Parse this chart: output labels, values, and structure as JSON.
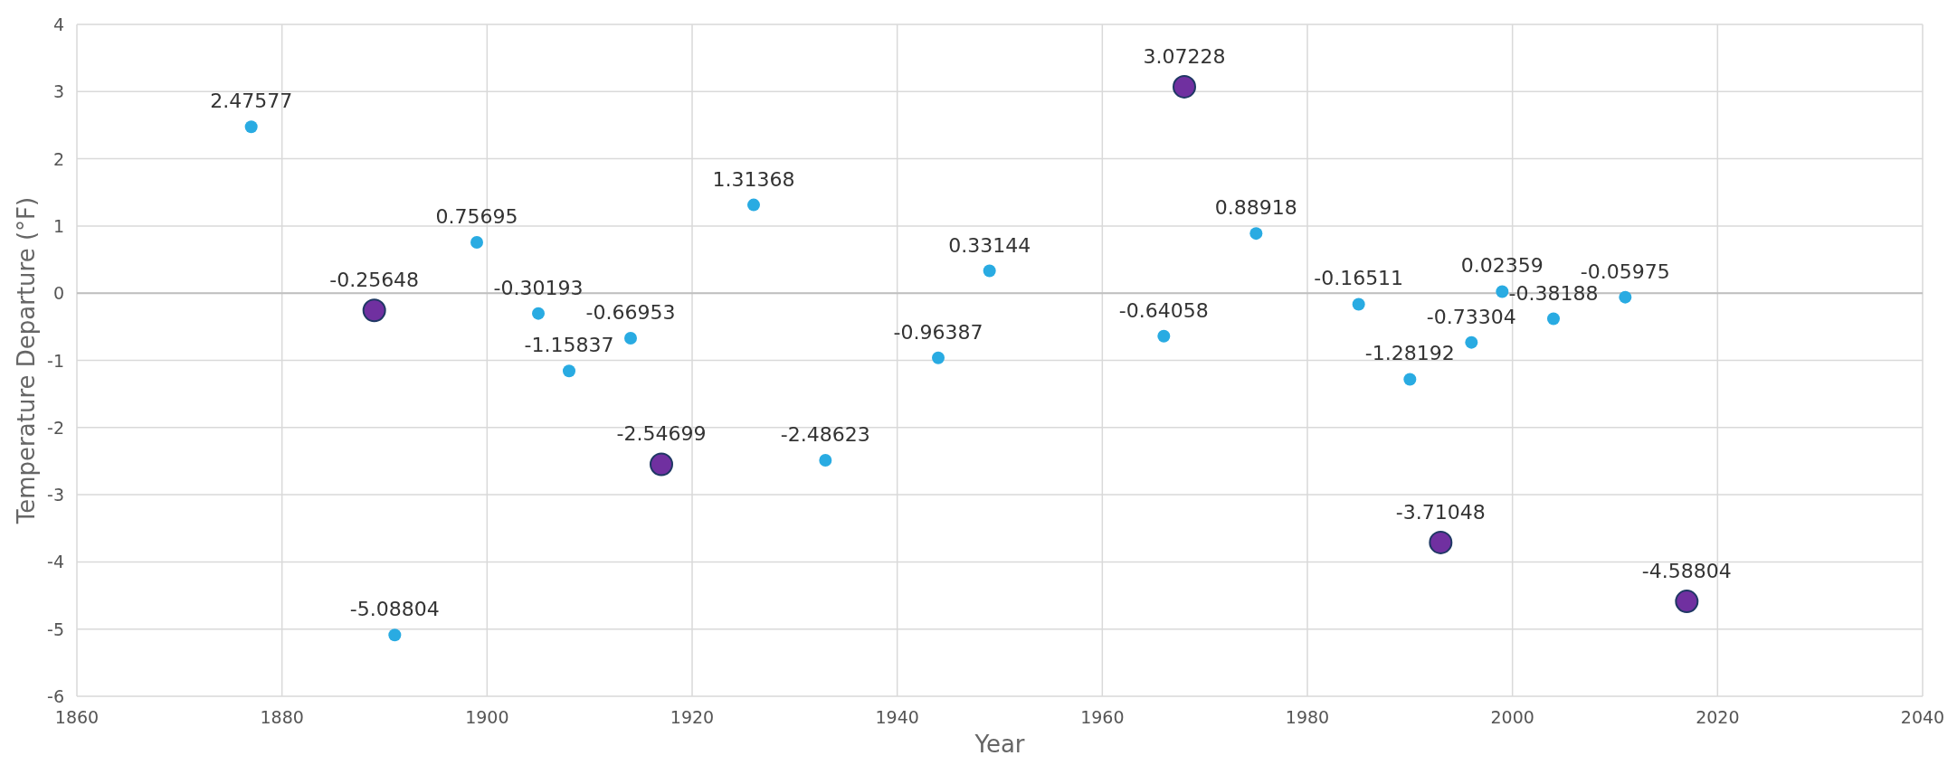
{
  "chart_data": {
    "type": "scatter",
    "xlabel": "Year",
    "ylabel": "Temperature Departure (°F)",
    "xlim": [
      1860,
      2040
    ],
    "xticks": [
      1860,
      1880,
      1900,
      1920,
      1940,
      1960,
      1980,
      2000,
      2020,
      2040
    ],
    "ylim": [
      -6,
      4
    ],
    "yticks": [
      -6,
      -5,
      -4,
      -3,
      -2,
      -1,
      0,
      1,
      2,
      3,
      4
    ],
    "grid": true,
    "marker": "circle",
    "data_labels": true,
    "series": [
      {
        "color": "#29abe2",
        "x": [
          1877,
          1891,
          1899,
          1905,
          1908,
          1914,
          1926,
          1933,
          1944,
          1949,
          1966,
          1975,
          1985,
          1990,
          1996,
          1999,
          2004,
          2011
        ],
        "values": [
          2.47577,
          -5.08804,
          0.75695,
          -0.30193,
          -1.15837,
          -0.66953,
          1.31368,
          -2.48623,
          -0.96387,
          0.33144,
          -0.64058,
          0.88918,
          -0.16511,
          -1.28192,
          -0.73304,
          0.02359,
          -0.38188,
          -0.05975
        ]
      },
      {
        "color": "#7030a0",
        "x": [
          1889,
          1917,
          1968,
          1993,
          2017
        ],
        "values": [
          -0.25648,
          -2.54699,
          3.07228,
          -3.71048,
          -4.58804
        ]
      }
    ]
  }
}
